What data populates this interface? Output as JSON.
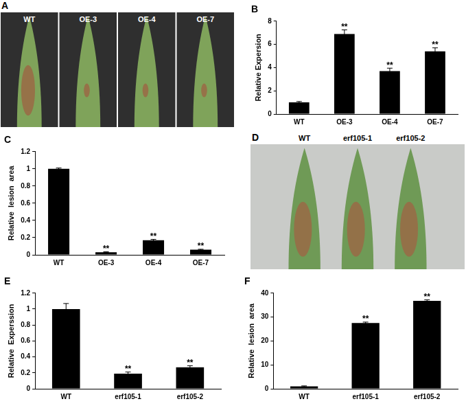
{
  "chart_data": [
    {
      "type": "bar",
      "title": "B",
      "y_label": "Relative Expersion",
      "categories": [
        "WT",
        "OE-3",
        "OE-4",
        "OE-7"
      ],
      "values": [
        1.0,
        6.9,
        3.7,
        5.4
      ],
      "errors": [
        0.08,
        0.35,
        0.25,
        0.3
      ],
      "color": "#000000",
      "ylim": [
        0,
        8
      ],
      "yticks": [
        0,
        2,
        4,
        6,
        8
      ],
      "grid": false,
      "annotations": [
        {
          "category": "OE-3",
          "text": "**"
        },
        {
          "category": "OE-4",
          "text": "**"
        },
        {
          "category": "OE-7",
          "text": "**"
        }
      ]
    },
    {
      "type": "bar",
      "title": "C",
      "y_label": "Relative  lesion  area",
      "categories": [
        "WT",
        "OE-3",
        "OE-4",
        "OE-7"
      ],
      "values": [
        1.0,
        0.03,
        0.17,
        0.06
      ],
      "errors": [
        0.01,
        0.005,
        0.01,
        0.005
      ],
      "color": "#000000",
      "ylim": [
        0,
        1.2
      ],
      "yticks": [
        0,
        0.2,
        0.4,
        0.6,
        0.8,
        1,
        1.2
      ],
      "grid": false,
      "annotations": [
        {
          "category": "OE-3",
          "text": "**"
        },
        {
          "category": "OE-4",
          "text": "**"
        },
        {
          "category": "OE-7",
          "text": "**"
        }
      ]
    },
    {
      "type": "bar",
      "title": "E",
      "y_label": "Relative  Experssion",
      "categories": [
        "WT",
        "erf105-1",
        "erf105-2"
      ],
      "values": [
        1.0,
        0.19,
        0.27
      ],
      "errors": [
        0.07,
        0.02,
        0.02
      ],
      "color": "#000000",
      "ylim": [
        0,
        1.2
      ],
      "yticks": [
        0,
        0.2,
        0.4,
        0.6,
        0.8,
        1,
        1.2
      ],
      "grid": false,
      "annotations": [
        {
          "category": "erf105-1",
          "text": "**"
        },
        {
          "category": "erf105-2",
          "text": "**"
        }
      ]
    },
    {
      "type": "bar",
      "title": "F",
      "y_label": "Relative  lesion  area",
      "categories": [
        "WT",
        "erf105-1",
        "erf105-2"
      ],
      "values": [
        1,
        27.5,
        36.8
      ],
      "errors": [
        0.2,
        0.4,
        0.4
      ],
      "color": "#000000",
      "ylim": [
        0,
        40
      ],
      "yticks": [
        0,
        10,
        20,
        30,
        40
      ],
      "grid": false,
      "annotations": [
        {
          "category": "erf105-1",
          "text": "**"
        },
        {
          "category": "erf105-2",
          "text": "**"
        }
      ]
    }
  ],
  "photos": [
    {
      "panel": "A",
      "labels": [
        "WT",
        "OE-3",
        "OE-4",
        "OE-7"
      ]
    },
    {
      "panel": "D",
      "labels": [
        "WT",
        "erf105-1",
        "erf105-2"
      ]
    }
  ]
}
